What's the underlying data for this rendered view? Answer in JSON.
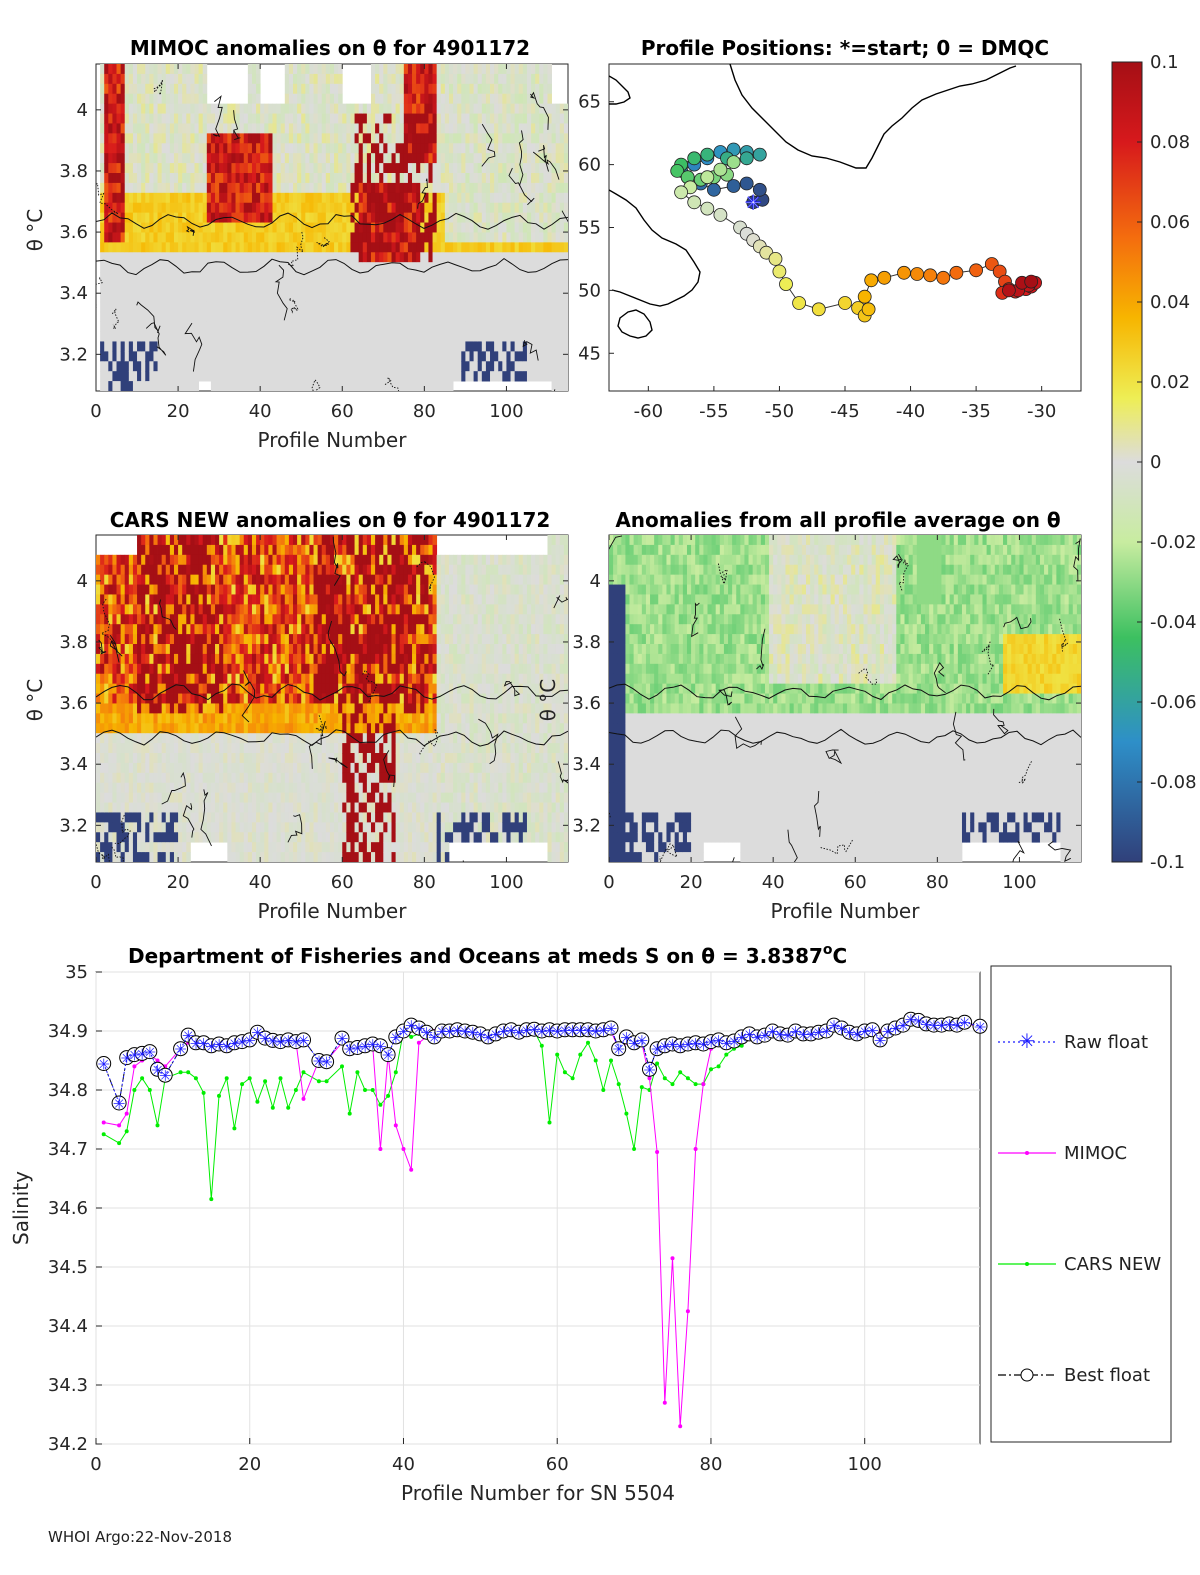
{
  "footer": "WHOI Argo:22-Nov-2018",
  "panels": {
    "mimoc": {
      "title": "MIMOC anomalies on θ  for 4901172",
      "xlabel": "Profile Number",
      "ylabel": "θ °C",
      "xticks": [
        "0",
        "20",
        "40",
        "60",
        "80",
        "100"
      ],
      "yticks": [
        "4",
        "3.8",
        "3.6",
        "3.4",
        "3.2"
      ],
      "xlim": [
        0,
        115
      ],
      "ylim": [
        3.08,
        4.15
      ]
    },
    "positions": {
      "title": "Profile Positions: *=start; 0 = DMQC",
      "xticks": [
        "-60",
        "-55",
        "-50",
        "-45",
        "-40",
        "-35",
        "-30"
      ],
      "yticks": [
        "65",
        "60",
        "55",
        "50",
        "45"
      ],
      "xlim": [
        -63,
        -27
      ],
      "ylim": [
        42,
        68
      ]
    },
    "cars": {
      "title": "CARS NEW anomalies on θ for 4901172",
      "xlabel": "Profile Number",
      "ylabel": "θ °C",
      "xticks": [
        "0",
        "20",
        "40",
        "60",
        "80",
        "100"
      ],
      "yticks": [
        "4",
        "3.8",
        "3.6",
        "3.4",
        "3.2"
      ]
    },
    "allavg": {
      "title": "Anomalies from all profile average on θ",
      "xlabel": "Profile Number",
      "ylabel": "θ °C",
      "xticks": [
        "0",
        "20",
        "40",
        "60",
        "80",
        "100"
      ],
      "yticks": [
        "4",
        "3.8",
        "3.6",
        "3.4",
        "3.2"
      ]
    }
  },
  "colorbar": {
    "ticks": [
      "0.1",
      "0.08",
      "0.06",
      "0.04",
      "0.02",
      "0",
      "-0.02",
      "-0.04",
      "-0.06",
      "-0.08",
      "-0.1"
    ],
    "range": [
      -0.1,
      0.1
    ]
  },
  "chart_data": {
    "type": "line",
    "title": "Department of Fisheries and Oceans at meds S on θ = 3.8387",
    "title_sup": "o",
    "title_unit": "C",
    "xlabel": "Profile Number for SN 5504",
    "ylabel": "Salinity",
    "xlim": [
      0,
      115
    ],
    "ylim": [
      34.2,
      35.0
    ],
    "xticks": [
      "0",
      "20",
      "40",
      "60",
      "80",
      "100"
    ],
    "yticks": [
      "35",
      "34.9",
      "34.8",
      "34.7",
      "34.6",
      "34.5",
      "34.4",
      "34.3",
      "34.2"
    ],
    "grid": true,
    "legend": [
      "Raw float",
      "MIMOC",
      "CARS NEW",
      "Best float"
    ],
    "series": [
      {
        "name": "Raw float",
        "color": "#1a1aff",
        "x": [
          1,
          3,
          4,
          5,
          6,
          7,
          8,
          9,
          11,
          12,
          13,
          14,
          15,
          16,
          17,
          18,
          19,
          20,
          21,
          22,
          23,
          24,
          25,
          26,
          27,
          29,
          30,
          32,
          33,
          34,
          35,
          36,
          37,
          38,
          39,
          40,
          41,
          42,
          43,
          44,
          45,
          46,
          47,
          48,
          49,
          50,
          51,
          52,
          53,
          54,
          55,
          56,
          57,
          58,
          59,
          60,
          61,
          62,
          63,
          64,
          65,
          66,
          67,
          68,
          69,
          70,
          71,
          72,
          73,
          74,
          75,
          76,
          77,
          78,
          79,
          80,
          81,
          82,
          83,
          84,
          85,
          86,
          87,
          88,
          89,
          90,
          91,
          92,
          93,
          94,
          95,
          96,
          97,
          98,
          99,
          100,
          101,
          102,
          103,
          104,
          105,
          106,
          107,
          108,
          109,
          110,
          111,
          112,
          113,
          115
        ],
        "y": [
          34.845,
          34.778,
          34.855,
          34.86,
          34.862,
          34.865,
          34.835,
          34.825,
          34.87,
          34.893,
          34.88,
          34.88,
          34.875,
          34.878,
          34.875,
          34.88,
          34.882,
          34.885,
          34.898,
          34.888,
          34.884,
          34.882,
          34.885,
          34.882,
          34.885,
          34.85,
          34.848,
          34.888,
          34.87,
          34.872,
          34.875,
          34.878,
          34.875,
          34.86,
          34.89,
          34.9,
          34.91,
          34.905,
          34.898,
          34.89,
          34.9,
          34.9,
          34.902,
          34.9,
          34.898,
          34.895,
          34.89,
          34.895,
          34.9,
          34.902,
          34.898,
          34.902,
          34.903,
          34.9,
          34.902,
          34.9,
          34.902,
          34.902,
          34.902,
          34.902,
          34.9,
          34.902,
          34.905,
          34.87,
          34.89,
          34.88,
          34.885,
          34.835,
          34.87,
          34.875,
          34.878,
          34.875,
          34.878,
          34.88,
          34.878,
          34.882,
          34.885,
          34.88,
          34.883,
          34.89,
          34.895,
          34.89,
          34.893,
          34.9,
          34.895,
          34.893,
          34.9,
          34.895,
          34.895,
          34.898,
          34.9,
          34.91,
          34.905,
          34.898,
          34.895,
          34.9,
          34.902,
          34.885,
          34.9,
          34.905,
          34.91,
          34.92,
          34.918,
          34.912,
          34.91,
          34.91,
          34.912,
          34.91,
          34.915,
          34.908
        ]
      },
      {
        "name": "MIMOC",
        "color": "#ff00ff",
        "x": [
          1,
          3,
          4,
          5,
          6,
          7,
          8,
          9,
          11,
          12,
          13,
          14,
          15,
          16,
          17,
          18,
          19,
          20,
          21,
          22,
          23,
          24,
          25,
          26,
          27,
          29,
          30,
          32,
          33,
          34,
          35,
          36,
          37,
          38,
          39,
          40,
          41,
          42,
          43,
          44,
          45,
          46,
          47,
          48,
          49,
          50,
          51,
          52,
          53,
          54,
          55,
          56,
          57,
          58,
          59,
          60,
          61,
          62,
          63,
          64,
          65,
          66,
          67,
          68,
          69,
          70,
          71,
          72,
          73,
          74,
          75,
          76,
          77,
          78,
          79,
          80,
          81,
          82,
          83,
          84,
          85,
          86,
          87,
          88,
          89,
          90,
          91,
          92,
          93,
          94,
          95,
          96,
          97,
          98,
          99,
          100,
          101,
          102,
          103,
          104,
          105,
          106,
          107,
          108,
          109,
          110,
          111,
          112,
          113,
          115
        ],
        "y": [
          34.745,
          34.74,
          34.76,
          34.84,
          34.85,
          34.86,
          34.85,
          34.84,
          34.87,
          34.88,
          34.875,
          34.878,
          34.872,
          34.878,
          34.88,
          34.882,
          34.88,
          34.885,
          34.888,
          34.885,
          34.882,
          34.88,
          34.885,
          34.882,
          34.785,
          34.85,
          34.85,
          34.88,
          34.865,
          34.87,
          34.872,
          34.875,
          34.7,
          34.86,
          34.74,
          34.7,
          34.665,
          34.88,
          34.89,
          34.9,
          34.895,
          34.9,
          34.9,
          34.898,
          34.895,
          34.895,
          34.892,
          34.895,
          34.9,
          34.9,
          34.895,
          34.9,
          34.9,
          34.9,
          34.9,
          34.898,
          34.9,
          34.9,
          34.898,
          34.9,
          34.898,
          34.9,
          34.9,
          34.87,
          34.88,
          34.875,
          34.88,
          34.82,
          34.695,
          34.27,
          34.515,
          34.23,
          34.425,
          34.7,
          34.81,
          34.87,
          34.88,
          34.875,
          34.88,
          34.885,
          34.89,
          34.89,
          34.89,
          34.9,
          34.895,
          34.893,
          34.9,
          34.895,
          34.895,
          34.898,
          34.9,
          34.905,
          34.905,
          34.898,
          34.898,
          34.9,
          34.902,
          34.9,
          34.9,
          34.905,
          34.91,
          34.918,
          34.915,
          34.912,
          34.91,
          34.91,
          34.912,
          34.91,
          34.912,
          34.908
        ]
      },
      {
        "name": "CARS NEW",
        "color": "#00ee00",
        "x": [
          1,
          3,
          4,
          5,
          6,
          7,
          8,
          9,
          11,
          12,
          13,
          14,
          15,
          16,
          17,
          18,
          19,
          20,
          21,
          22,
          23,
          24,
          25,
          26,
          27,
          29,
          30,
          32,
          33,
          34,
          35,
          36,
          37,
          38,
          39,
          40,
          41,
          42,
          43,
          44,
          45,
          46,
          47,
          48,
          49,
          50,
          51,
          52,
          53,
          54,
          55,
          56,
          57,
          58,
          59,
          60,
          61,
          62,
          63,
          64,
          65,
          66,
          67,
          68,
          69,
          70,
          71,
          72,
          73,
          74,
          75,
          76,
          77,
          78,
          79,
          80,
          81,
          82,
          83,
          84,
          85,
          86,
          87,
          88,
          89,
          90,
          91,
          92,
          93,
          94,
          95,
          96,
          97,
          98,
          99,
          100,
          101,
          102,
          103,
          104,
          105,
          106,
          107,
          108,
          109,
          110,
          111,
          112,
          113,
          115
        ],
        "y": [
          34.725,
          34.71,
          34.73,
          34.8,
          34.82,
          34.8,
          34.74,
          34.82,
          34.83,
          34.83,
          34.82,
          34.795,
          34.615,
          34.79,
          34.82,
          34.735,
          34.81,
          34.82,
          34.78,
          34.815,
          34.77,
          34.82,
          34.77,
          34.8,
          34.83,
          34.815,
          34.815,
          34.84,
          34.76,
          34.83,
          34.8,
          34.8,
          34.775,
          34.79,
          34.83,
          34.9,
          34.89,
          34.895,
          34.89,
          34.89,
          34.895,
          34.9,
          34.9,
          34.9,
          34.895,
          34.895,
          34.89,
          34.895,
          34.9,
          34.9,
          34.895,
          34.9,
          34.9,
          34.875,
          34.745,
          34.86,
          34.83,
          34.82,
          34.86,
          34.88,
          34.85,
          34.8,
          34.85,
          34.81,
          34.76,
          34.7,
          34.805,
          34.8,
          34.845,
          34.82,
          34.81,
          34.83,
          34.82,
          34.81,
          34.81,
          34.835,
          34.84,
          34.86,
          34.87,
          34.875,
          34.89,
          34.89,
          34.89,
          34.9,
          34.895,
          34.893,
          34.9,
          34.895,
          34.895,
          34.898,
          34.9,
          34.905,
          34.905,
          34.898,
          34.895,
          34.9,
          34.902,
          34.9,
          34.9,
          34.905,
          34.91,
          34.918,
          34.915,
          34.912,
          34.91,
          34.91,
          34.912,
          34.91,
          34.912,
          34.908
        ]
      },
      {
        "name": "Best float",
        "color": "#000000",
        "x": [
          1,
          3,
          4,
          5,
          6,
          7,
          8,
          9,
          11,
          12,
          13,
          14,
          15,
          16,
          17,
          18,
          19,
          20,
          21,
          22,
          23,
          24,
          25,
          26,
          27,
          29,
          30,
          32,
          33,
          34,
          35,
          36,
          37,
          38,
          39,
          40,
          41,
          42,
          43,
          44,
          45,
          46,
          47,
          48,
          49,
          50,
          51,
          52,
          53,
          54,
          55,
          56,
          57,
          58,
          59,
          60,
          61,
          62,
          63,
          64,
          65,
          66,
          67,
          68,
          69,
          70,
          71,
          72,
          73,
          74,
          75,
          76,
          77,
          78,
          79,
          80,
          81,
          82,
          83,
          84,
          85,
          86,
          87,
          88,
          89,
          90,
          91,
          92,
          93,
          94,
          95,
          96,
          97,
          98,
          99,
          100,
          101,
          102,
          103,
          104,
          105,
          106,
          107,
          108,
          109,
          110,
          111,
          112,
          113,
          115
        ],
        "y": [
          34.845,
          34.778,
          34.855,
          34.86,
          34.862,
          34.865,
          34.835,
          34.825,
          34.87,
          34.893,
          34.88,
          34.88,
          34.875,
          34.878,
          34.875,
          34.88,
          34.882,
          34.885,
          34.898,
          34.888,
          34.884,
          34.882,
          34.885,
          34.882,
          34.885,
          34.85,
          34.848,
          34.888,
          34.87,
          34.872,
          34.875,
          34.878,
          34.875,
          34.86,
          34.89,
          34.9,
          34.91,
          34.905,
          34.898,
          34.89,
          34.9,
          34.9,
          34.902,
          34.9,
          34.898,
          34.895,
          34.89,
          34.895,
          34.9,
          34.902,
          34.898,
          34.902,
          34.903,
          34.9,
          34.902,
          34.9,
          34.902,
          34.902,
          34.902,
          34.902,
          34.9,
          34.902,
          34.905,
          34.87,
          34.89,
          34.88,
          34.885,
          34.835,
          34.87,
          34.875,
          34.878,
          34.875,
          34.878,
          34.88,
          34.878,
          34.882,
          34.885,
          34.88,
          34.883,
          34.89,
          34.895,
          34.89,
          34.893,
          34.9,
          34.895,
          34.893,
          34.9,
          34.895,
          34.895,
          34.898,
          34.9,
          34.91,
          34.905,
          34.898,
          34.895,
          34.9,
          34.902,
          34.885,
          34.9,
          34.905,
          34.91,
          34.92,
          34.918,
          34.912,
          34.91,
          34.91,
          34.912,
          34.91,
          34.915,
          34.908
        ]
      }
    ]
  },
  "float_track": {
    "start": [
      -52.0,
      57.0
    ],
    "lon": [
      -52.0,
      -51.3,
      -51.5,
      -52.5,
      -53.5,
      -55.0,
      -56.0,
      -57.0,
      -57.5,
      -56.5,
      -55.5,
      -54.5,
      -53.5,
      -52.5,
      -51.5,
      -52.5,
      -54.0,
      -55.5,
      -56.5,
      -57.5,
      -57.8,
      -57.0,
      -56.0,
      -55.0,
      -54.0,
      -53.5,
      -54.5,
      -55.5,
      -56.8,
      -57.5,
      -56.5,
      -55.5,
      -54.5,
      -53.0,
      -52.5,
      -52.0,
      -51.5,
      -51.0,
      -50.3,
      -50.0,
      -49.5,
      -48.5,
      -47.0,
      -45.0,
      -44.0,
      -43.5,
      -43.2,
      -43.5,
      -43.0,
      -42.0,
      -40.5,
      -39.5,
      -38.5,
      -37.5,
      -36.5,
      -35.0,
      -33.8,
      -33.2,
      -32.8,
      -32.5,
      -33.0,
      -32.0,
      -31.2,
      -30.8,
      -30.5,
      -31.0,
      -31.8,
      -32.5,
      -31.5,
      -30.8
    ],
    "lat": [
      57.0,
      57.2,
      58.0,
      58.5,
      58.3,
      58.0,
      58.5,
      59.0,
      59.5,
      60.0,
      60.5,
      61.0,
      61.2,
      61.0,
      60.8,
      60.5,
      60.5,
      60.8,
      60.5,
      60.0,
      59.5,
      59.0,
      58.8,
      59.0,
      59.2,
      60.2,
      59.6,
      59.0,
      58.2,
      57.8,
      57.0,
      56.5,
      56.0,
      55.0,
      54.5,
      54.0,
      53.5,
      53.0,
      52.5,
      51.5,
      50.5,
      49.0,
      48.5,
      49.0,
      48.6,
      48.0,
      48.5,
      49.5,
      50.8,
      51.0,
      51.4,
      51.3,
      51.2,
      51.0,
      51.4,
      51.6,
      52.1,
      51.5,
      50.7,
      50.1,
      49.8,
      49.9,
      50.1,
      50.3,
      50.6,
      50.4,
      50.0,
      50.0,
      50.6,
      50.7
    ]
  }
}
